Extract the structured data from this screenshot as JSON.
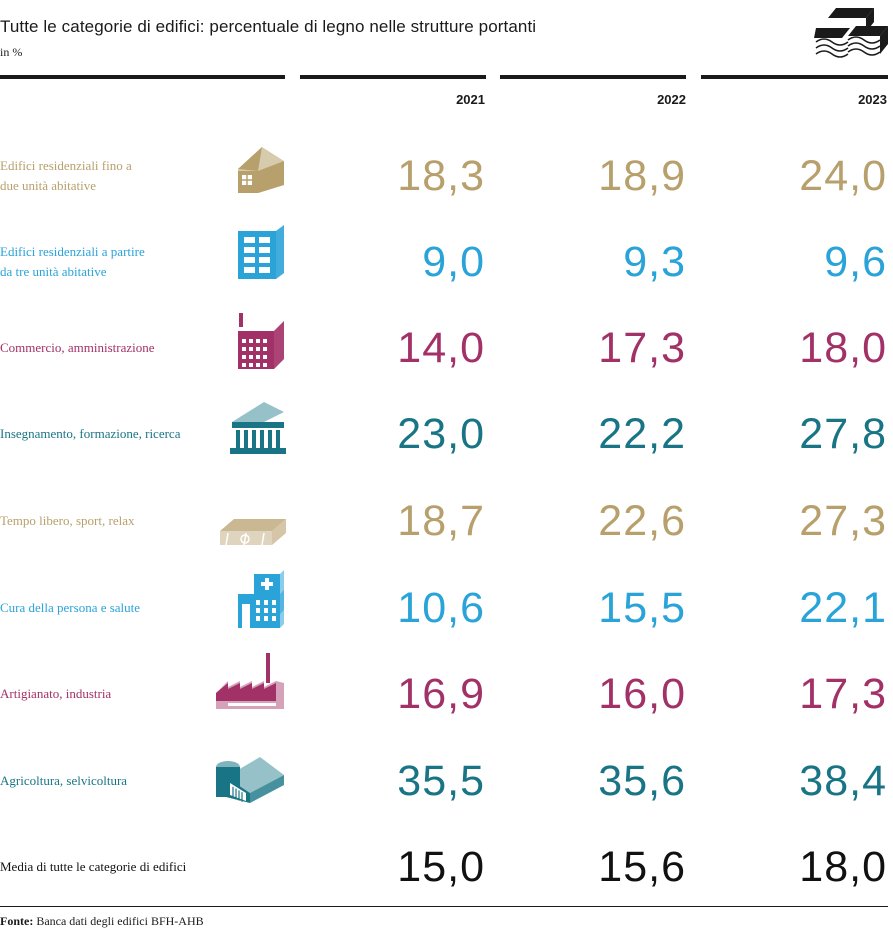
{
  "title": "Tutte le categorie di edifici: percentuale di legno nelle strutture portanti",
  "unit": "in %",
  "colors": {
    "gold": "#b7a06c",
    "blue": "#2aa3d8",
    "plum": "#a23167",
    "teal": "#197586",
    "black": "#111111"
  },
  "chart_data": {
    "type": "table",
    "title": "Tutte le categorie di edifici: percentuale di legno nelle strutture portanti",
    "unit": "in %",
    "columns": [
      "2021",
      "2022",
      "2023"
    ],
    "rows": [
      {
        "label_line1": "Edifici residenziali fino a",
        "label_line2": "due unità abitative",
        "icon": "single-family-house-icon",
        "color": "#b7a06c",
        "values": [
          "18,3",
          "18,9",
          "24,0"
        ]
      },
      {
        "label_line1": "Edifici residenziali a partire",
        "label_line2": "da tre unità abitative",
        "icon": "apartment-building-icon",
        "color": "#2aa3d8",
        "values": [
          "9,0",
          "9,3",
          "9,6"
        ]
      },
      {
        "label_line1": "Commercio, amministrazione",
        "label_line2": "",
        "icon": "office-building-icon",
        "color": "#a23167",
        "values": [
          "14,0",
          "17,3",
          "18,0"
        ]
      },
      {
        "label_line1": "Insegnamento, formazione, ricerca",
        "label_line2": "",
        "icon": "school-columns-icon",
        "color": "#197586",
        "values": [
          "23,0",
          "22,2",
          "27,8"
        ]
      },
      {
        "label_line1": "Tempo libero, sport, relax",
        "label_line2": "",
        "icon": "sports-field-icon",
        "color": "#b7a06c",
        "values": [
          "18,7",
          "22,6",
          "27,3"
        ]
      },
      {
        "label_line1": "Cura della persona e salute",
        "label_line2": "",
        "icon": "hospital-icon",
        "color": "#2aa3d8",
        "values": [
          "10,6",
          "15,5",
          "22,1"
        ]
      },
      {
        "label_line1": "Artigianato, industria",
        "label_line2": "",
        "icon": "factory-icon",
        "color": "#a23167",
        "values": [
          "16,9",
          "16,0",
          "17,3"
        ]
      },
      {
        "label_line1": "Agricoltura, selvicoltura",
        "label_line2": "",
        "icon": "barn-icon",
        "color": "#197586",
        "values": [
          "35,5",
          "35,6",
          "38,4"
        ]
      },
      {
        "label_line1": "Media di tutte le categorie di edifici",
        "label_line2": "",
        "icon": "",
        "color": "#111111",
        "values": [
          "15,0",
          "15,6",
          "18,0"
        ]
      }
    ]
  },
  "source": {
    "label": "Fonte:",
    "text": "Banca dati degli edifici BFH-AHB"
  }
}
